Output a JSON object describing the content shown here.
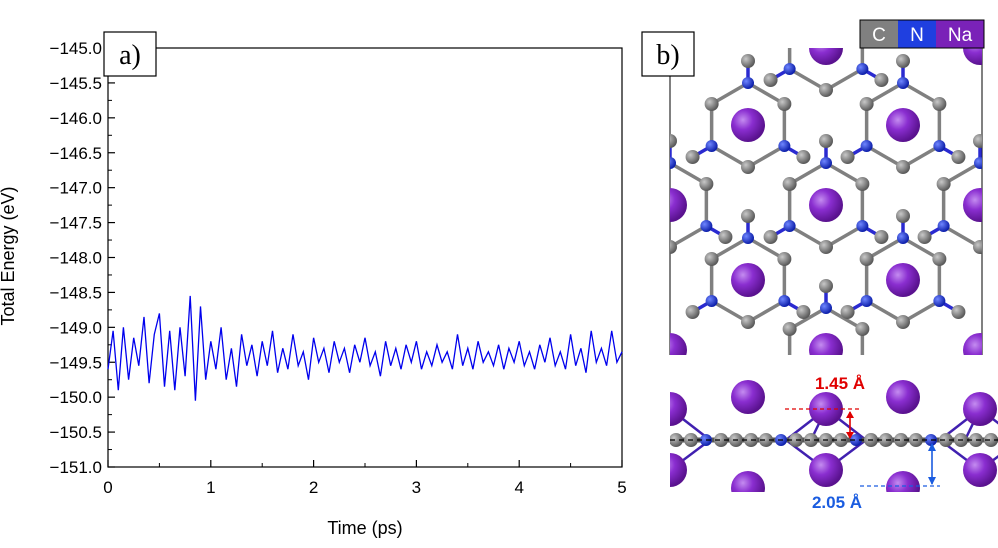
{
  "chart_data": {
    "type": "line",
    "title": "",
    "xlabel": "Time (ps)",
    "ylabel": "Total Energy (eV)",
    "xlim": [
      0,
      5
    ],
    "ylim": [
      -151.0,
      -145.0
    ],
    "x_ticks": [
      "0",
      "1",
      "2",
      "3",
      "4",
      "5"
    ],
    "y_ticks": [
      "−145.0",
      "−145.5",
      "−146.0",
      "−146.5",
      "−147.0",
      "−147.5",
      "−148.0",
      "−148.5",
      "−149.0",
      "−149.5",
      "−150.0",
      "−150.5",
      "−151.0"
    ],
    "series": [
      {
        "color": "#0000ee",
        "x": [
          0.0,
          0.05,
          0.1,
          0.15,
          0.2,
          0.25,
          0.3,
          0.35,
          0.4,
          0.45,
          0.5,
          0.55,
          0.6,
          0.65,
          0.7,
          0.75,
          0.8,
          0.85,
          0.9,
          0.95,
          1.0,
          1.05,
          1.1,
          1.15,
          1.2,
          1.25,
          1.3,
          1.35,
          1.4,
          1.45,
          1.5,
          1.55,
          1.6,
          1.65,
          1.7,
          1.75,
          1.8,
          1.85,
          1.9,
          1.95,
          2.0,
          2.05,
          2.1,
          2.15,
          2.2,
          2.25,
          2.3,
          2.35,
          2.4,
          2.45,
          2.5,
          2.55,
          2.6,
          2.65,
          2.7,
          2.75,
          2.8,
          2.85,
          2.9,
          2.95,
          3.0,
          3.05,
          3.1,
          3.15,
          3.2,
          3.25,
          3.3,
          3.35,
          3.4,
          3.45,
          3.5,
          3.55,
          3.6,
          3.65,
          3.7,
          3.75,
          3.8,
          3.85,
          3.9,
          3.95,
          4.0,
          4.05,
          4.1,
          4.15,
          4.2,
          4.25,
          4.3,
          4.35,
          4.4,
          4.45,
          4.5,
          4.55,
          4.6,
          4.65,
          4.7,
          4.75,
          4.8,
          4.85,
          4.9,
          4.95,
          5.0
        ],
        "y": [
          -149.6,
          -149.05,
          -149.9,
          -149.0,
          -149.75,
          -149.15,
          -149.55,
          -148.85,
          -149.8,
          -149.1,
          -148.8,
          -149.85,
          -149.05,
          -149.9,
          -149.0,
          -149.7,
          -148.55,
          -150.05,
          -148.7,
          -149.75,
          -149.2,
          -149.6,
          -149.0,
          -149.75,
          -149.3,
          -149.85,
          -149.1,
          -149.55,
          -149.25,
          -149.7,
          -149.2,
          -149.55,
          -149.05,
          -149.65,
          -149.3,
          -149.6,
          -149.1,
          -149.55,
          -149.35,
          -149.75,
          -149.15,
          -149.5,
          -149.3,
          -149.65,
          -149.2,
          -149.5,
          -149.3,
          -149.65,
          -149.25,
          -149.5,
          -149.15,
          -149.55,
          -149.35,
          -149.7,
          -149.2,
          -149.55,
          -149.3,
          -149.6,
          -149.25,
          -149.5,
          -149.2,
          -149.6,
          -149.35,
          -149.55,
          -149.25,
          -149.5,
          -149.35,
          -149.6,
          -149.1,
          -149.55,
          -149.3,
          -149.6,
          -149.2,
          -149.5,
          -149.35,
          -149.55,
          -149.25,
          -149.6,
          -149.3,
          -149.5,
          -149.2,
          -149.55,
          -149.35,
          -149.6,
          -149.25,
          -149.5,
          -149.15,
          -149.55,
          -149.35,
          -149.6,
          -149.1,
          -149.55,
          -149.3,
          -149.65,
          -149.05,
          -149.5,
          -149.3,
          -149.55,
          -149.05,
          -149.5,
          -149.35
        ]
      }
    ]
  },
  "panels": {
    "a_label": "a)",
    "b_label": "b)"
  },
  "legend": [
    {
      "label": "C",
      "color": "#808080"
    },
    {
      "label": "N",
      "color": "#1f3fe0"
    },
    {
      "label": "Na",
      "color": "#7a22b8"
    }
  ],
  "annotations": {
    "red_distance": "1.45 Å",
    "blue_distance": "2.05 Å",
    "red_color": "#e00000",
    "blue_color": "#1a5ce0"
  },
  "atom_colors": {
    "carbon": "#7a7a7a",
    "nitrogen": "#1a33cc",
    "sodium": "#7a22c0"
  }
}
